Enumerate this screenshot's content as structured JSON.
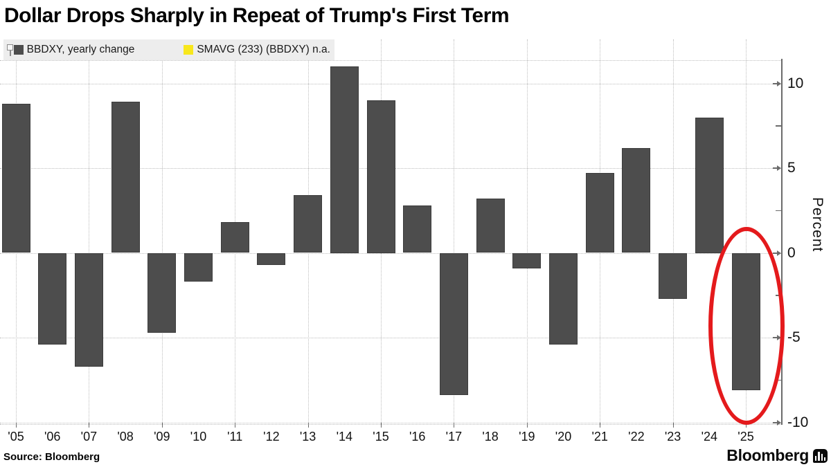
{
  "title": "Dollar Drops Sharply in Repeat of Trump's First Term",
  "legend": {
    "pin_icon": "pin-icon",
    "series1_label": "BBDXY, yearly change",
    "series1_color": "#4d4d4d",
    "series2_label": "SMAVG (233) (BBDXY) n.a.",
    "series2_color": "#f8e71c"
  },
  "source_note": "Source: Bloomberg",
  "brand": "Bloomberg",
  "colors": {
    "bar": "#4d4d4d",
    "bar_border": "#3c3c3c",
    "annotation_red": "#e41a1c",
    "grid": "#bdbdbd",
    "axis": "#6b6b6b",
    "legend_bg": "#ededed"
  },
  "chart_data": {
    "type": "bar",
    "title": "Dollar Drops Sharply in Repeat of Trump's First Term",
    "categories": [
      "'05",
      "'06",
      "'07",
      "'08",
      "'09",
      "'10",
      "'11",
      "'12",
      "'13",
      "'14",
      "'15",
      "'16",
      "'17",
      "'18",
      "'19",
      "'20",
      "'21",
      "'22",
      "'23",
      "'24",
      "'25"
    ],
    "values": [
      8.8,
      -5.4,
      -6.7,
      8.9,
      -4.7,
      -1.7,
      1.8,
      -0.7,
      3.4,
      11.0,
      9.0,
      2.8,
      -8.4,
      3.2,
      -0.9,
      -5.4,
      4.7,
      6.2,
      -2.7,
      8.0,
      -8.1
    ],
    "series_name": "BBDXY, yearly change",
    "xlabel": "",
    "ylabel": "Percent",
    "yticks": [
      10,
      5,
      0,
      -5,
      -10
    ],
    "yticks_minor": [
      7.5,
      2.5,
      -2.5,
      -7.5
    ],
    "ylim": [
      -10.1,
      11.4
    ],
    "grid": "dotted; horizontal at yticks, vertical at odd years",
    "legend_position": "top-left",
    "y_axis_side": "right",
    "annotation": {
      "shape": "ellipse",
      "color": "#e41a1c",
      "target_category": "'25",
      "meaning": "highlights 2025 dollar drop"
    }
  }
}
